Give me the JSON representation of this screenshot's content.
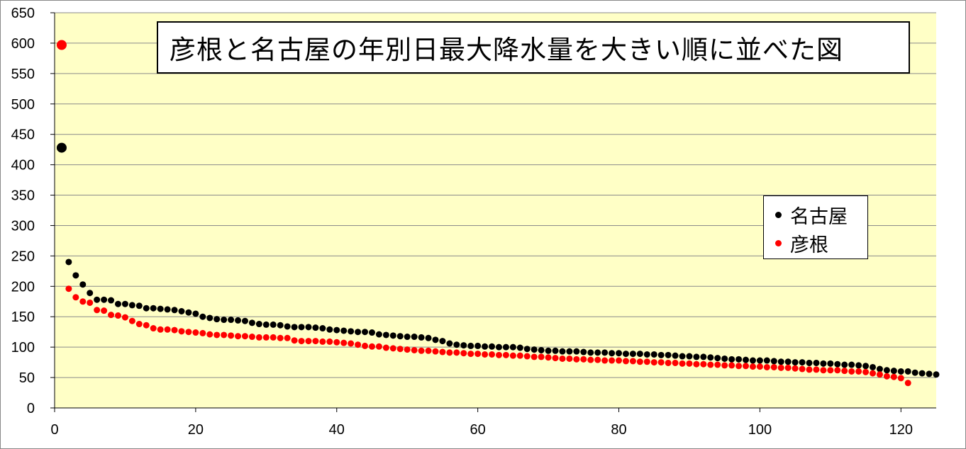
{
  "chart_data": {
    "type": "scatter",
    "title": "彦根と名古屋の年別日最大降水量を大きい順に並べた図",
    "xlabel": "",
    "ylabel": "",
    "xlim": [
      0,
      125
    ],
    "ylim": [
      0,
      650
    ],
    "xticks": [
      0,
      20,
      40,
      60,
      80,
      100,
      120
    ],
    "yticks": [
      0,
      50,
      100,
      150,
      200,
      250,
      300,
      350,
      400,
      450,
      500,
      550,
      600,
      650
    ],
    "grid": "horizontal",
    "legend_position": "right",
    "series": [
      {
        "name": "名古屋",
        "color": "#000000",
        "values": [
          428,
          240,
          218,
          203,
          189,
          178,
          178,
          177,
          171,
          171,
          169,
          168,
          164,
          164,
          163,
          162,
          161,
          159,
          157,
          155,
          150,
          148,
          146,
          145,
          145,
          144,
          143,
          140,
          138,
          137,
          137,
          136,
          134,
          133,
          133,
          133,
          132,
          131,
          129,
          128,
          127,
          126,
          125,
          125,
          124,
          121,
          120,
          119,
          118,
          117,
          117,
          116,
          115,
          112,
          110,
          106,
          104,
          103,
          102,
          102,
          101,
          101,
          100,
          100,
          100,
          99,
          97,
          96,
          95,
          94,
          94,
          93,
          93,
          93,
          92,
          91,
          91,
          91,
          90,
          90,
          89,
          89,
          89,
          88,
          88,
          87,
          87,
          86,
          85,
          85,
          84,
          84,
          83,
          82,
          81,
          80,
          80,
          79,
          78,
          78,
          78,
          77,
          76,
          76,
          75,
          75,
          74,
          74,
          73,
          73,
          72,
          71,
          71,
          70,
          69,
          67,
          64,
          62,
          61,
          60,
          60,
          58,
          57,
          56,
          55
        ]
      },
      {
        "name": "彦根",
        "color": "#ff0000",
        "values": [
          597,
          196,
          182,
          175,
          173,
          161,
          160,
          153,
          152,
          149,
          143,
          138,
          136,
          131,
          129,
          129,
          128,
          126,
          125,
          124,
          123,
          121,
          120,
          120,
          119,
          118,
          118,
          117,
          116,
          116,
          116,
          115,
          115,
          111,
          110,
          110,
          110,
          109,
          109,
          108,
          107,
          106,
          104,
          102,
          101,
          101,
          99,
          98,
          97,
          96,
          95,
          94,
          94,
          93,
          92,
          91,
          91,
          90,
          89,
          89,
          88,
          88,
          87,
          87,
          86,
          86,
          85,
          84,
          84,
          83,
          82,
          81,
          81,
          80,
          80,
          79,
          79,
          78,
          78,
          78,
          77,
          77,
          76,
          76,
          75,
          75,
          74,
          74,
          73,
          73,
          72,
          72,
          71,
          71,
          70,
          70,
          69,
          69,
          68,
          68,
          67,
          67,
          66,
          66,
          65,
          64,
          63,
          63,
          62,
          62,
          62,
          61,
          60,
          60,
          59,
          57,
          55,
          52,
          51,
          49,
          41
        ]
      }
    ]
  }
}
